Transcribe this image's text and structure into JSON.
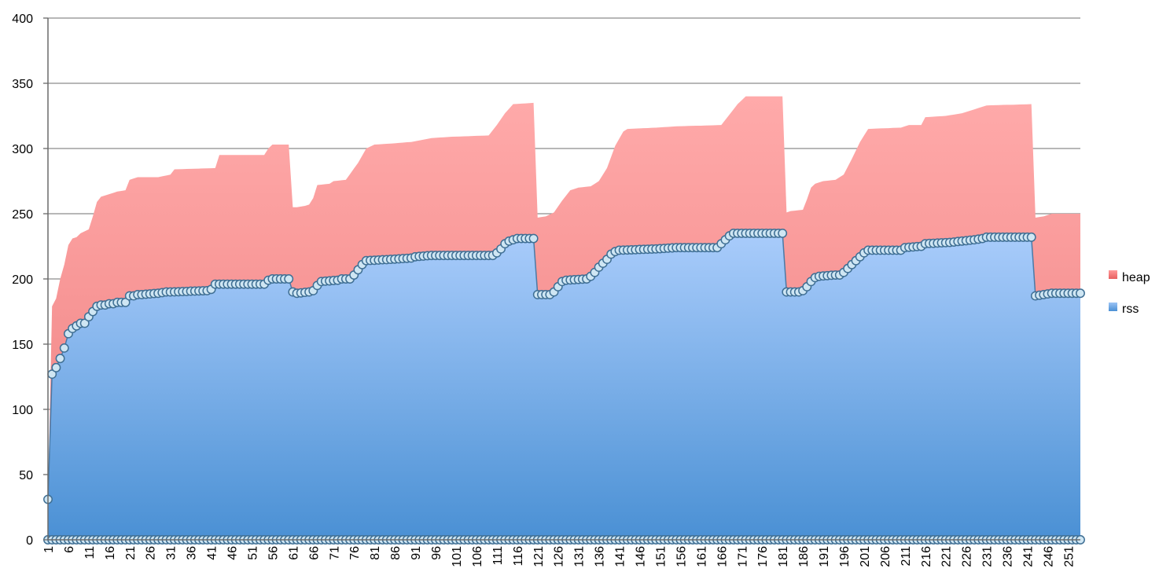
{
  "chart_data": {
    "type": "area",
    "x": {
      "start": 1,
      "end": 254,
      "label_every": 5
    },
    "ylim": [
      0,
      400
    ],
    "yticks": [
      "0",
      "50",
      "100",
      "150",
      "200",
      "250",
      "300",
      "350",
      "400"
    ],
    "grid": true,
    "legend": "right",
    "stacked": true,
    "series": [
      {
        "name": "rss",
        "color_top": "#a9ccfb",
        "color_bottom": "#4a90d4",
        "markers": true,
        "knots": [
          [
            1,
            31
          ],
          [
            2,
            127
          ],
          [
            3,
            132
          ],
          [
            4,
            139
          ],
          [
            5,
            147
          ],
          [
            6,
            158
          ],
          [
            7,
            162
          ],
          [
            8,
            164
          ],
          [
            9,
            166
          ],
          [
            10,
            166
          ],
          [
            11,
            171
          ],
          [
            12,
            175
          ],
          [
            13,
            179
          ],
          [
            14,
            180
          ],
          [
            15,
            180
          ],
          [
            16,
            181
          ],
          [
            17,
            181
          ],
          [
            18,
            182
          ],
          [
            19,
            182
          ],
          [
            20,
            182
          ],
          [
            21,
            187
          ],
          [
            22,
            187
          ],
          [
            23,
            188
          ],
          [
            24,
            188
          ],
          [
            28,
            189
          ],
          [
            30,
            190
          ],
          [
            31,
            190
          ],
          [
            40,
            191
          ],
          [
            41,
            192
          ],
          [
            42,
            196
          ],
          [
            54,
            196
          ],
          [
            55,
            199
          ],
          [
            56,
            200
          ],
          [
            60,
            200
          ],
          [
            61,
            190
          ],
          [
            62,
            189
          ],
          [
            65,
            190
          ],
          [
            66,
            191
          ],
          [
            67,
            195
          ],
          [
            68,
            198
          ],
          [
            72,
            199
          ],
          [
            73,
            200
          ],
          [
            75,
            200
          ],
          [
            76,
            203
          ],
          [
            77,
            207
          ],
          [
            78,
            211
          ],
          [
            79,
            214
          ],
          [
            85,
            215
          ],
          [
            90,
            216
          ],
          [
            91,
            217
          ],
          [
            95,
            218
          ],
          [
            100,
            218
          ],
          [
            110,
            218
          ],
          [
            111,
            220
          ],
          [
            112,
            223
          ],
          [
            113,
            227
          ],
          [
            114,
            229
          ],
          [
            115,
            230
          ],
          [
            116,
            231
          ],
          [
            120,
            231
          ],
          [
            121,
            188
          ],
          [
            124,
            188
          ],
          [
            125,
            190
          ],
          [
            126,
            194
          ],
          [
            127,
            198
          ],
          [
            128,
            199
          ],
          [
            133,
            200
          ],
          [
            134,
            202
          ],
          [
            135,
            205
          ],
          [
            136,
            209
          ],
          [
            137,
            212
          ],
          [
            138,
            215
          ],
          [
            139,
            219
          ],
          [
            140,
            221
          ],
          [
            141,
            222
          ],
          [
            150,
            223
          ],
          [
            155,
            224
          ],
          [
            165,
            224
          ],
          [
            166,
            227
          ],
          [
            167,
            230
          ],
          [
            168,
            233
          ],
          [
            169,
            235
          ],
          [
            181,
            235
          ],
          [
            182,
            190
          ],
          [
            185,
            190
          ],
          [
            186,
            191
          ],
          [
            187,
            194
          ],
          [
            188,
            198
          ],
          [
            189,
            201
          ],
          [
            190,
            202
          ],
          [
            194,
            203
          ],
          [
            195,
            203
          ],
          [
            196,
            205
          ],
          [
            197,
            208
          ],
          [
            198,
            211
          ],
          [
            199,
            214
          ],
          [
            200,
            217
          ],
          [
            201,
            220
          ],
          [
            202,
            222
          ],
          [
            210,
            222
          ],
          [
            211,
            224
          ],
          [
            215,
            225
          ],
          [
            216,
            227
          ],
          [
            222,
            228
          ],
          [
            225,
            229
          ],
          [
            228,
            230
          ],
          [
            230,
            231
          ],
          [
            231,
            232
          ],
          [
            242,
            232
          ],
          [
            243,
            187
          ],
          [
            245,
            188
          ],
          [
            247,
            189
          ],
          [
            254,
            189
          ]
        ]
      },
      {
        "name": "heap",
        "color_top": "#ffaaaa",
        "color_bottom": "#ee7f7f",
        "markers": false,
        "total_knots": [
          [
            1,
            31
          ],
          [
            2,
            179
          ],
          [
            3,
            185
          ],
          [
            4,
            200
          ],
          [
            5,
            211
          ],
          [
            6,
            226
          ],
          [
            7,
            231
          ],
          [
            8,
            232
          ],
          [
            9,
            235
          ],
          [
            11,
            238
          ],
          [
            12,
            248
          ],
          [
            13,
            259
          ],
          [
            14,
            263
          ],
          [
            16,
            265
          ],
          [
            17,
            266
          ],
          [
            18,
            267
          ],
          [
            20,
            268
          ],
          [
            21,
            276
          ],
          [
            22,
            277
          ],
          [
            23,
            278
          ],
          [
            28,
            278
          ],
          [
            31,
            280
          ],
          [
            32,
            284
          ],
          [
            42,
            285
          ],
          [
            43,
            295
          ],
          [
            54,
            295
          ],
          [
            55,
            300
          ],
          [
            56,
            303
          ],
          [
            60,
            303
          ],
          [
            61,
            255
          ],
          [
            62,
            255
          ],
          [
            64,
            256
          ],
          [
            65,
            257
          ],
          [
            66,
            262
          ],
          [
            67,
            272
          ],
          [
            70,
            273
          ],
          [
            71,
            275
          ],
          [
            74,
            276
          ],
          [
            77,
            289
          ],
          [
            79,
            300
          ],
          [
            81,
            303
          ],
          [
            86,
            304
          ],
          [
            90,
            305
          ],
          [
            95,
            308
          ],
          [
            100,
            309
          ],
          [
            109,
            310
          ],
          [
            111,
            318
          ],
          [
            113,
            327
          ],
          [
            115,
            334
          ],
          [
            120,
            335
          ],
          [
            121,
            247
          ],
          [
            123,
            248
          ],
          [
            125,
            251
          ],
          [
            127,
            260
          ],
          [
            129,
            268
          ],
          [
            131,
            270
          ],
          [
            134,
            271
          ],
          [
            136,
            275
          ],
          [
            138,
            285
          ],
          [
            140,
            302
          ],
          [
            142,
            313
          ],
          [
            143,
            315
          ],
          [
            150,
            316
          ],
          [
            155,
            317
          ],
          [
            166,
            318
          ],
          [
            168,
            326
          ],
          [
            170,
            334
          ],
          [
            172,
            340
          ],
          [
            181,
            340
          ],
          [
            182,
            251
          ],
          [
            183,
            252
          ],
          [
            186,
            253
          ],
          [
            187,
            261
          ],
          [
            188,
            270
          ],
          [
            189,
            273
          ],
          [
            191,
            275
          ],
          [
            194,
            276
          ],
          [
            196,
            280
          ],
          [
            198,
            292
          ],
          [
            200,
            305
          ],
          [
            202,
            315
          ],
          [
            210,
            316
          ],
          [
            212,
            318
          ],
          [
            215,
            318
          ],
          [
            216,
            324
          ],
          [
            221,
            325
          ],
          [
            225,
            327
          ],
          [
            228,
            330
          ],
          [
            231,
            333
          ],
          [
            242,
            334
          ],
          [
            243,
            247
          ],
          [
            245,
            248
          ],
          [
            247,
            250
          ],
          [
            254,
            250
          ]
        ]
      }
    ]
  }
}
